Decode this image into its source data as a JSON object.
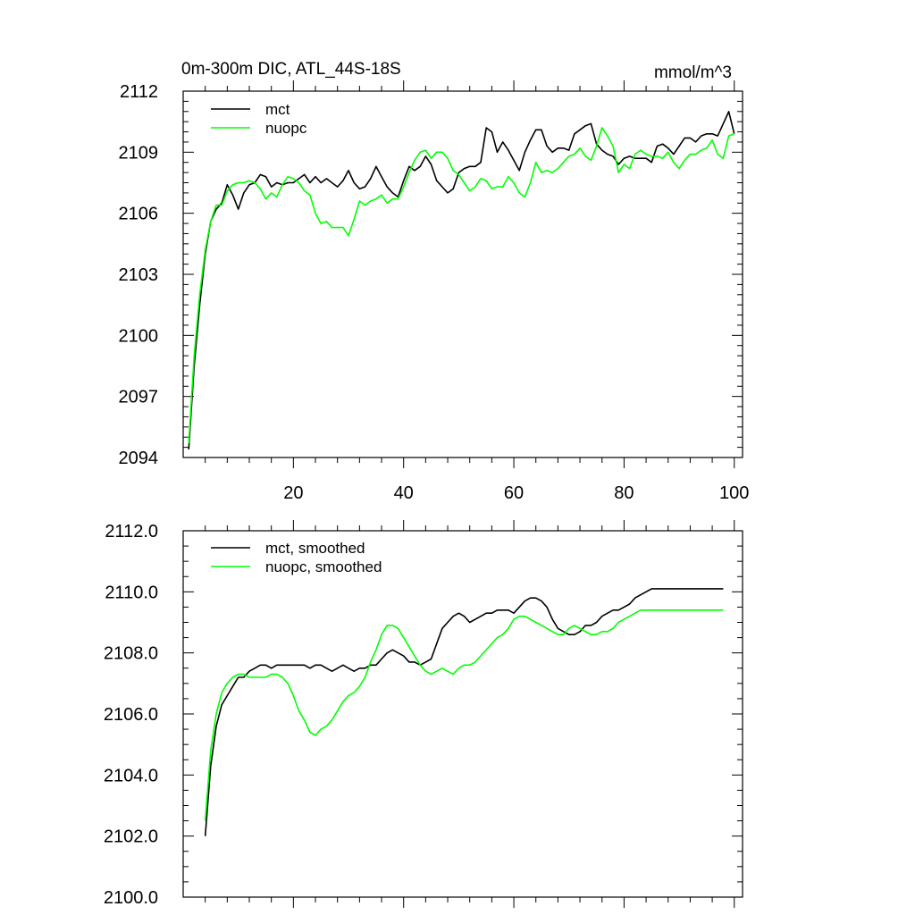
{
  "title_left": "0m-300m DIC, ATL_44S-18S",
  "title_right": "mmol/m^3",
  "colors": {
    "mct": "#000000",
    "nuopc": "#00ff00",
    "axis": "#000000"
  },
  "chart_data": [
    {
      "type": "line",
      "title": "0m-300m DIC, ATL_44S-18S",
      "units": "mmol/m^3",
      "xlabel": "",
      "ylabel": "",
      "xlim": [
        0,
        101.5
      ],
      "ylim": [
        2094,
        2112
      ],
      "x_ticks": [
        20,
        40,
        60,
        80,
        100
      ],
      "x_tick_labels": [
        "20",
        "40",
        "60",
        "80",
        "100"
      ],
      "y_ticks": [
        2094,
        2097,
        2100,
        2103,
        2106,
        2109,
        2112
      ],
      "y_tick_labels": [
        "2094",
        "2097",
        "2100",
        "2103",
        "2106",
        "2109",
        "2112"
      ],
      "legend": [
        "mct",
        "nuopc"
      ],
      "legend_position": "top-left",
      "series": [
        {
          "name": "mct",
          "color": "#000000",
          "x": [
            1,
            2,
            3,
            4,
            5,
            6,
            7,
            8,
            9,
            10,
            11,
            12,
            13,
            14,
            15,
            16,
            17,
            18,
            19,
            20,
            21,
            22,
            23,
            24,
            25,
            26,
            27,
            28,
            29,
            30,
            31,
            32,
            33,
            34,
            35,
            36,
            37,
            38,
            39,
            40,
            41,
            42,
            43,
            44,
            45,
            46,
            47,
            48,
            49,
            50,
            51,
            52,
            53,
            54,
            55,
            56,
            57,
            58,
            59,
            60,
            61,
            62,
            63,
            64,
            65,
            66,
            67,
            68,
            69,
            70,
            71,
            72,
            73,
            74,
            75,
            76,
            77,
            78,
            79,
            80,
            81,
            82,
            83,
            84,
            85,
            86,
            87,
            88,
            89,
            90,
            91,
            92,
            93,
            94,
            95,
            96,
            97,
            98,
            99,
            100
          ],
          "values": [
            2094.4,
            2098.5,
            2101.5,
            2104.0,
            2105.6,
            2106.2,
            2106.5,
            2107.4,
            2106.9,
            2106.2,
            2107.0,
            2107.4,
            2107.5,
            2107.9,
            2107.8,
            2107.3,
            2107.5,
            2107.4,
            2107.5,
            2107.5,
            2107.7,
            2107.9,
            2107.5,
            2107.8,
            2107.5,
            2107.7,
            2107.5,
            2107.3,
            2107.6,
            2108.1,
            2107.5,
            2107.2,
            2107.3,
            2107.7,
            2108.3,
            2107.8,
            2107.3,
            2107.0,
            2106.8,
            2107.6,
            2108.3,
            2108.1,
            2108.3,
            2108.8,
            2108.4,
            2107.6,
            2107.3,
            2107.0,
            2107.2,
            2108.0,
            2108.2,
            2108.3,
            2108.3,
            2108.5,
            2110.2,
            2110.0,
            2109.0,
            2109.5,
            2109.1,
            2108.6,
            2108.1,
            2109.0,
            2109.6,
            2110.1,
            2110.1,
            2109.3,
            2109.0,
            2109.2,
            2109.2,
            2109.1,
            2109.9,
            2110.1,
            2110.3,
            2110.4,
            2109.4,
            2109.1,
            2108.9,
            2108.8,
            2108.4,
            2108.7,
            2108.8,
            2108.7,
            2108.7,
            2108.7,
            2108.5,
            2109.3,
            2109.4,
            2109.2,
            2108.9,
            2109.3,
            2109.7,
            2109.7,
            2109.5,
            2109.8,
            2109.9,
            2109.9,
            2109.8,
            2110.4,
            2111.0,
            2109.9
          ]
        },
        {
          "name": "nuopc",
          "color": "#00ff00",
          "x": [
            1,
            2,
            3,
            4,
            5,
            6,
            7,
            8,
            9,
            10,
            11,
            12,
            13,
            14,
            15,
            16,
            17,
            18,
            19,
            20,
            21,
            22,
            23,
            24,
            25,
            26,
            27,
            28,
            29,
            30,
            31,
            32,
            33,
            34,
            35,
            36,
            37,
            38,
            39,
            40,
            41,
            42,
            43,
            44,
            45,
            46,
            47,
            48,
            49,
            50,
            51,
            52,
            53,
            54,
            55,
            56,
            57,
            58,
            59,
            60,
            61,
            62,
            63,
            64,
            65,
            66,
            67,
            68,
            69,
            70,
            71,
            72,
            73,
            74,
            75,
            76,
            77,
            78,
            79,
            80,
            81,
            82,
            83,
            84,
            85,
            86,
            87,
            88,
            89,
            90,
            91,
            92,
            93,
            94,
            95,
            96,
            97,
            98,
            99,
            100
          ],
          "values": [
            2094.7,
            2099.0,
            2102.0,
            2104.2,
            2105.6,
            2106.4,
            2106.4,
            2107.1,
            2107.4,
            2107.5,
            2107.5,
            2107.6,
            2107.5,
            2107.2,
            2106.7,
            2107.0,
            2106.8,
            2107.4,
            2107.8,
            2107.7,
            2107.5,
            2107.1,
            2106.9,
            2106.0,
            2105.5,
            2105.6,
            2105.3,
            2105.3,
            2105.3,
            2104.9,
            2105.7,
            2106.6,
            2106.4,
            2106.6,
            2106.7,
            2106.9,
            2106.5,
            2106.7,
            2106.7,
            2107.3,
            2108.0,
            2108.6,
            2109.0,
            2109.1,
            2108.7,
            2109.0,
            2109.0,
            2108.7,
            2108.1,
            2107.9,
            2107.5,
            2107.1,
            2107.3,
            2107.7,
            2107.6,
            2107.2,
            2107.3,
            2107.3,
            2107.8,
            2107.5,
            2107.0,
            2106.8,
            2107.5,
            2108.5,
            2108.0,
            2108.1,
            2108.0,
            2108.2,
            2108.5,
            2108.8,
            2108.9,
            2109.2,
            2108.8,
            2108.6,
            2109.3,
            2110.2,
            2109.8,
            2109.3,
            2108.0,
            2108.4,
            2108.2,
            2108.9,
            2109.1,
            2108.9,
            2108.8,
            2108.8,
            2108.7,
            2109.0,
            2108.5,
            2108.2,
            2108.6,
            2108.9,
            2108.9,
            2109.1,
            2109.2,
            2109.6,
            2108.9,
            2108.7,
            2109.8,
            2109.9
          ]
        }
      ]
    },
    {
      "type": "line",
      "title": "",
      "xlabel": "",
      "ylabel": "",
      "xlim": [
        0,
        101.5
      ],
      "ylim": [
        2100,
        2112
      ],
      "x_ticks": [
        20,
        40,
        60,
        80,
        100
      ],
      "y_ticks": [
        2100,
        2102,
        2104,
        2106,
        2108,
        2110,
        2112
      ],
      "y_tick_labels": [
        "2100.0",
        "2102.0",
        "2104.0",
        "2106.0",
        "2108.0",
        "2110.0",
        "2112.0"
      ],
      "legend": [
        "mct, smoothed",
        "nuopc, smoothed"
      ],
      "legend_position": "top-left",
      "series": [
        {
          "name": "mct, smoothed",
          "color": "#000000",
          "x": [
            4,
            5,
            6,
            7,
            8,
            9,
            10,
            11,
            12,
            13,
            14,
            15,
            16,
            17,
            18,
            19,
            20,
            21,
            22,
            23,
            24,
            25,
            26,
            27,
            28,
            29,
            30,
            31,
            32,
            33,
            34,
            35,
            36,
            37,
            38,
            39,
            40,
            41,
            42,
            43,
            44,
            45,
            46,
            47,
            48,
            49,
            50,
            51,
            52,
            53,
            54,
            55,
            56,
            57,
            58,
            59,
            60,
            61,
            62,
            63,
            64,
            65,
            66,
            67,
            68,
            69,
            70,
            71,
            72,
            73,
            74,
            75,
            76,
            77,
            78,
            79,
            80,
            81,
            82,
            83,
            84,
            85,
            86,
            87,
            88,
            89,
            90,
            91,
            92,
            93,
            94,
            95,
            96,
            97,
            98
          ],
          "values": [
            2102.0,
            2104.3,
            2105.6,
            2106.3,
            2106.6,
            2106.9,
            2107.2,
            2107.2,
            2107.4,
            2107.5,
            2107.6,
            2107.6,
            2107.5,
            2107.6,
            2107.6,
            2107.6,
            2107.6,
            2107.6,
            2107.6,
            2107.5,
            2107.6,
            2107.6,
            2107.5,
            2107.4,
            2107.5,
            2107.6,
            2107.5,
            2107.4,
            2107.5,
            2107.5,
            2107.6,
            2107.6,
            2107.8,
            2108.0,
            2108.1,
            2108.0,
            2107.9,
            2107.7,
            2107.7,
            2107.6,
            2107.7,
            2107.8,
            2108.3,
            2108.8,
            2109.0,
            2109.2,
            2109.3,
            2109.2,
            2109.0,
            2109.1,
            2109.2,
            2109.3,
            2109.3,
            2109.4,
            2109.4,
            2109.4,
            2109.3,
            2109.5,
            2109.7,
            2109.8,
            2109.8,
            2109.7,
            2109.5,
            2109.1,
            2108.8,
            2108.7,
            2108.6,
            2108.6,
            2108.7,
            2108.9,
            2108.9,
            2109.0,
            2109.2,
            2109.3,
            2109.4,
            2109.4,
            2109.5,
            2109.6,
            2109.8,
            2109.9,
            2110.0,
            2110.1,
            2110.1,
            2110.1,
            2110.1,
            2110.1,
            2110.1,
            2110.1,
            2110.1,
            2110.1,
            2110.1,
            2110.1,
            2110.1,
            2110.1,
            2110.1
          ]
        },
        {
          "name": "nuopc, smoothed",
          "color": "#00ff00",
          "x": [
            4,
            5,
            6,
            7,
            8,
            9,
            10,
            11,
            12,
            13,
            14,
            15,
            16,
            17,
            18,
            19,
            20,
            21,
            22,
            23,
            24,
            25,
            26,
            27,
            28,
            29,
            30,
            31,
            32,
            33,
            34,
            35,
            36,
            37,
            38,
            39,
            40,
            41,
            42,
            43,
            44,
            45,
            46,
            47,
            48,
            49,
            50,
            51,
            52,
            53,
            54,
            55,
            56,
            57,
            58,
            59,
            60,
            61,
            62,
            63,
            64,
            65,
            66,
            67,
            68,
            69,
            70,
            71,
            72,
            73,
            74,
            75,
            76,
            77,
            78,
            79,
            80,
            81,
            82,
            83,
            84,
            85,
            86,
            87,
            88,
            89,
            90,
            91,
            92,
            93,
            94,
            95,
            96,
            97,
            98
          ],
          "values": [
            2102.5,
            2104.8,
            2106.0,
            2106.7,
            2107.0,
            2107.2,
            2107.3,
            2107.3,
            2107.2,
            2107.2,
            2107.2,
            2107.2,
            2107.3,
            2107.3,
            2107.2,
            2107.0,
            2106.6,
            2106.1,
            2105.8,
            2105.4,
            2105.3,
            2105.5,
            2105.6,
            2105.8,
            2106.1,
            2106.4,
            2106.6,
            2106.7,
            2106.9,
            2107.2,
            2107.7,
            2108.1,
            2108.6,
            2108.9,
            2108.9,
            2108.8,
            2108.5,
            2108.2,
            2107.9,
            2107.6,
            2107.4,
            2107.3,
            2107.4,
            2107.5,
            2107.4,
            2107.3,
            2107.5,
            2107.6,
            2107.6,
            2107.7,
            2107.9,
            2108.1,
            2108.3,
            2108.5,
            2108.6,
            2108.8,
            2109.1,
            2109.2,
            2109.2,
            2109.1,
            2109.0,
            2108.9,
            2108.8,
            2108.7,
            2108.6,
            2108.6,
            2108.8,
            2108.9,
            2108.8,
            2108.7,
            2108.6,
            2108.6,
            2108.7,
            2108.7,
            2108.8,
            2109.0,
            2109.1,
            2109.2,
            2109.3,
            2109.4,
            2109.4,
            2109.4,
            2109.4,
            2109.4,
            2109.4,
            2109.4,
            2109.4,
            2109.4,
            2109.4,
            2109.4,
            2109.4,
            2109.4,
            2109.4,
            2109.4,
            2109.4
          ]
        }
      ]
    }
  ]
}
